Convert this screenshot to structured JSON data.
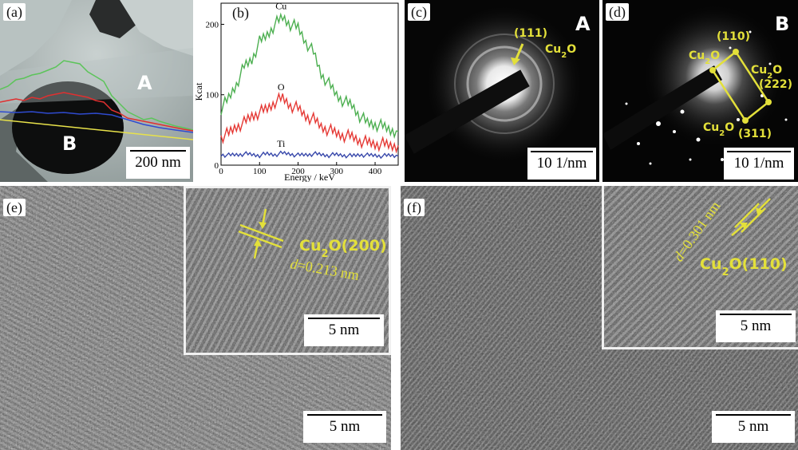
{
  "panel_a": {
    "label": "(a)",
    "region_A": "A",
    "region_B": "B",
    "scale": "200 nm"
  },
  "panel_b": {
    "label": "(b)",
    "chart_data": {
      "type": "line",
      "xlabel": "Energy / keV",
      "ylabel": "Kcat",
      "xlim": [
        0,
        460
      ],
      "ylim": [
        0,
        230
      ],
      "xticks": [
        0,
        100,
        200,
        300,
        400
      ],
      "yticks": [
        0,
        100,
        200
      ],
      "grid": false,
      "series": [
        {
          "name": "Cu",
          "color": "#4caf50",
          "x": [
            0,
            20,
            40,
            60,
            80,
            100,
            120,
            140,
            160,
            180,
            200,
            220,
            240,
            260,
            280,
            300,
            320,
            340,
            360,
            380,
            400,
            420,
            440,
            460
          ],
          "y": [
            80,
            95,
            115,
            140,
            150,
            175,
            185,
            200,
            210,
            200,
            195,
            175,
            160,
            130,
            115,
            100,
            90,
            85,
            70,
            60,
            58,
            55,
            50,
            48
          ]
        },
        {
          "name": "O",
          "color": "#e53935",
          "x": [
            0,
            20,
            40,
            60,
            80,
            100,
            120,
            140,
            160,
            180,
            200,
            220,
            240,
            260,
            280,
            300,
            320,
            340,
            360,
            380,
            400,
            420,
            440,
            460
          ],
          "y": [
            40,
            45,
            55,
            60,
            70,
            75,
            80,
            90,
            95,
            85,
            80,
            70,
            65,
            55,
            50,
            45,
            42,
            40,
            35,
            32,
            30,
            30,
            28,
            28
          ]
        },
        {
          "name": "Ti",
          "color": "#3949ab",
          "x": [
            0,
            20,
            40,
            60,
            80,
            100,
            120,
            140,
            160,
            180,
            200,
            220,
            240,
            260,
            280,
            300,
            320,
            340,
            360,
            380,
            400,
            420,
            440,
            460
          ],
          "y": [
            15,
            14,
            15,
            16,
            15,
            14,
            16,
            15,
            17,
            16,
            14,
            15,
            16,
            15,
            14,
            15,
            14,
            13,
            15,
            14,
            14,
            13,
            14,
            13
          ]
        }
      ]
    }
  },
  "panel_c": {
    "label": "(c)",
    "region": "A",
    "index": "(111)",
    "phase_base": "Cu",
    "phase_sub": "2",
    "phase_end": "O",
    "scale": "10 1/nm"
  },
  "panel_d": {
    "label": "(d)",
    "region": "B",
    "index_110": "(110)",
    "index_222": "(222)",
    "index_311": "(311)",
    "phase_base": "Cu",
    "phase_sub": "2",
    "phase_end": "O",
    "scale": "10 1/nm"
  },
  "panel_e": {
    "label": "(e)",
    "inset_phase_base": "Cu",
    "inset_phase_sub": "2",
    "inset_phase_end": "O(200)",
    "inset_d_italic": "d",
    "inset_d_value": "=0.213 nm",
    "inset_scale": "5 nm",
    "scale": "5 nm"
  },
  "panel_f": {
    "label": "(f)",
    "inset_phase_base": "Cu",
    "inset_phase_sub": "2",
    "inset_phase_end": "O(110)",
    "inset_d_italic": "d",
    "inset_d_value": "=0.301 nm",
    "inset_scale": "5 nm",
    "scale": "5 nm"
  }
}
